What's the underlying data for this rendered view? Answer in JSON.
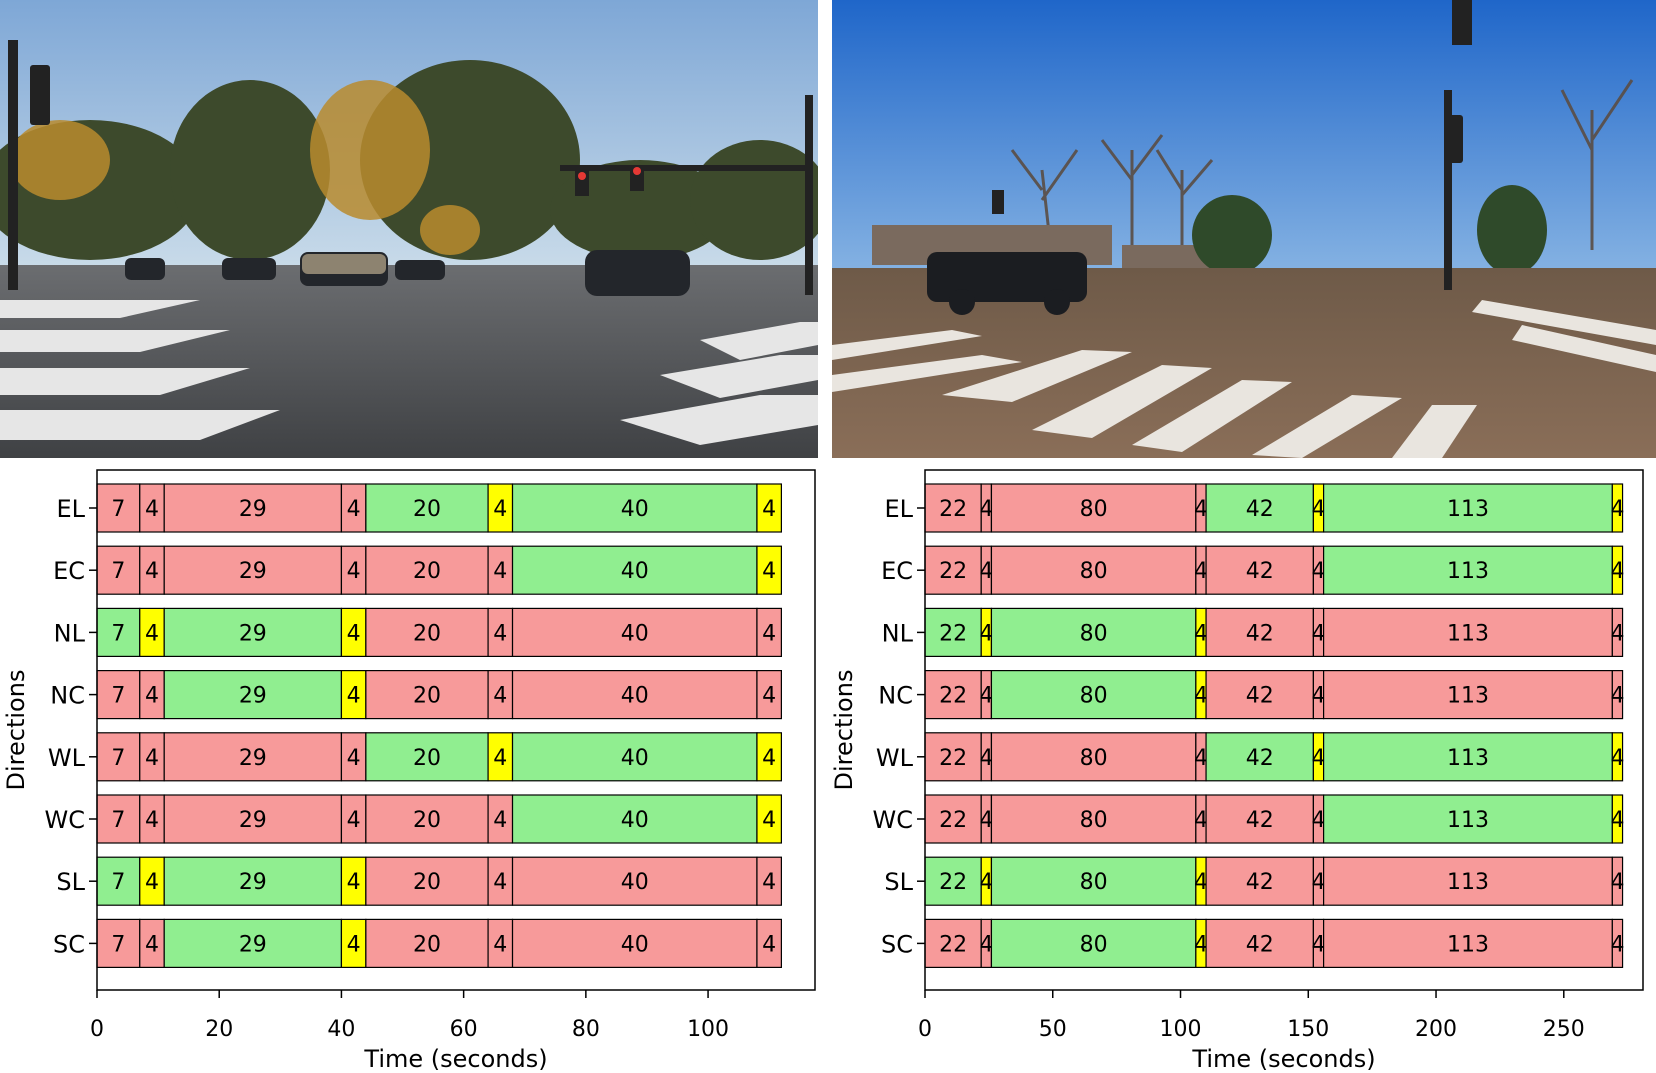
{
  "colors": {
    "red": "#f79a9a",
    "green": "#90ee90",
    "yellow": "#ffff00",
    "frame": "#000000"
  },
  "photos": [
    {
      "scene": "daytime four-way signalized intersection with SUVs and crosswalk, golden trees, clear sky"
    },
    {
      "scene": "intersection with black pickup truck crossing, zebra crosswalk, bare trees, blue sky"
    }
  ],
  "chart_data": [
    {
      "type": "bar",
      "orientation": "horizontal-stacked",
      "xlabel": "Time (seconds)",
      "ylabel": "Directions",
      "xlim": [
        0,
        117.5
      ],
      "xticks": [
        0,
        20,
        40,
        60,
        80,
        100
      ],
      "categories": [
        "EL",
        "EC",
        "NL",
        "NC",
        "WL",
        "WC",
        "SL",
        "SC"
      ],
      "segment_durations": [
        7,
        4,
        29,
        4,
        20,
        4,
        40,
        4
      ],
      "states": {
        "EL": [
          "R",
          "R",
          "R",
          "R",
          "G",
          "Y",
          "G",
          "Y"
        ],
        "EC": [
          "R",
          "R",
          "R",
          "R",
          "R",
          "R",
          "G",
          "Y"
        ],
        "NL": [
          "G",
          "Y",
          "G",
          "Y",
          "R",
          "R",
          "R",
          "R"
        ],
        "NC": [
          "R",
          "R",
          "G",
          "Y",
          "R",
          "R",
          "R",
          "R"
        ],
        "WL": [
          "R",
          "R",
          "R",
          "R",
          "G",
          "Y",
          "G",
          "Y"
        ],
        "WC": [
          "R",
          "R",
          "R",
          "R",
          "R",
          "R",
          "G",
          "Y"
        ],
        "SL": [
          "G",
          "Y",
          "G",
          "Y",
          "R",
          "R",
          "R",
          "R"
        ],
        "SC": [
          "R",
          "R",
          "G",
          "Y",
          "R",
          "R",
          "R",
          "R"
        ]
      }
    },
    {
      "type": "bar",
      "orientation": "horizontal-stacked",
      "xlabel": "Time (seconds)",
      "ylabel": "Directions",
      "xlim": [
        0,
        281
      ],
      "xticks": [
        0,
        50,
        100,
        150,
        200,
        250
      ],
      "categories": [
        "EL",
        "EC",
        "NL",
        "NC",
        "WL",
        "WC",
        "SL",
        "SC"
      ],
      "segment_durations": [
        22,
        4,
        80,
        4,
        42,
        4,
        113,
        4
      ],
      "states": {
        "EL": [
          "R",
          "R",
          "R",
          "R",
          "G",
          "Y",
          "G",
          "Y"
        ],
        "EC": [
          "R",
          "R",
          "R",
          "R",
          "R",
          "R",
          "G",
          "Y"
        ],
        "NL": [
          "G",
          "Y",
          "G",
          "Y",
          "R",
          "R",
          "R",
          "R"
        ],
        "NC": [
          "R",
          "R",
          "G",
          "Y",
          "R",
          "R",
          "R",
          "R"
        ],
        "WL": [
          "R",
          "R",
          "R",
          "R",
          "G",
          "Y",
          "G",
          "Y"
        ],
        "WC": [
          "R",
          "R",
          "R",
          "R",
          "R",
          "R",
          "G",
          "Y"
        ],
        "SL": [
          "G",
          "Y",
          "G",
          "Y",
          "R",
          "R",
          "R",
          "R"
        ],
        "SC": [
          "R",
          "R",
          "G",
          "Y",
          "R",
          "R",
          "R",
          "R"
        ]
      }
    }
  ]
}
